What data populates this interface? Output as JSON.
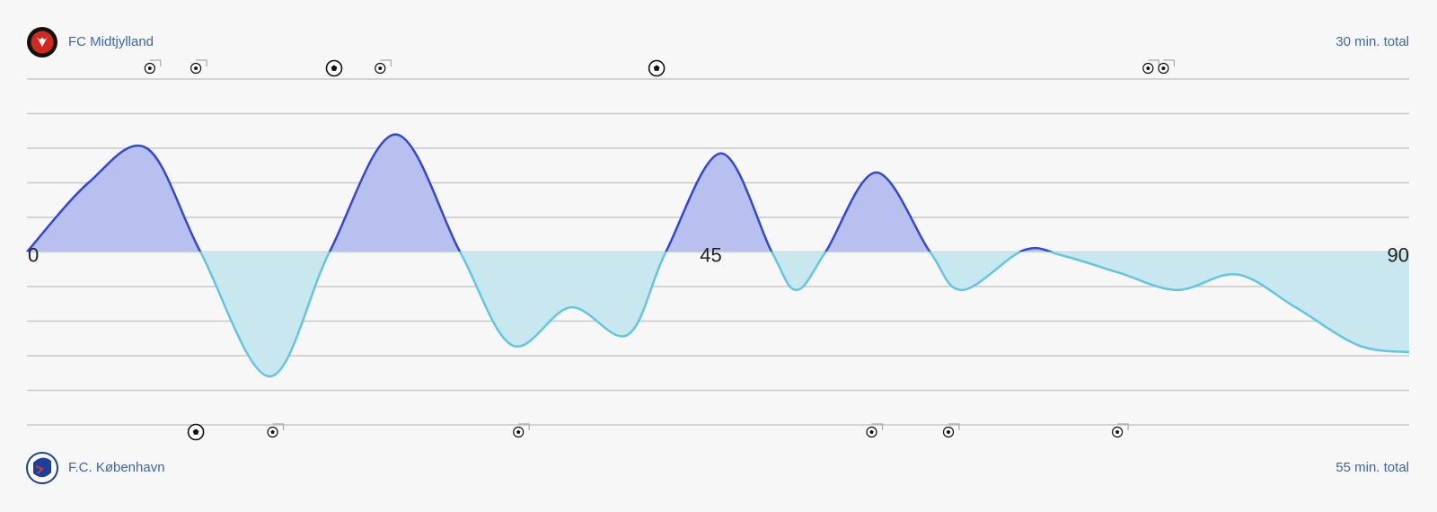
{
  "chart_data": {
    "type": "momentum",
    "x": [
      0,
      4,
      7.8,
      11.3,
      15.8,
      19.7,
      24,
      28.2,
      31.6,
      35.4,
      39.1,
      41.6,
      45.2,
      48.5,
      50.1,
      52,
      55.3,
      58.8,
      60.9,
      64.9,
      67.4,
      71.1,
      74.9,
      78.8,
      82.6,
      86.7,
      90
    ],
    "values": [
      0,
      2,
      3,
      0,
      -3.6,
      0,
      3.4,
      0,
      -2.7,
      -1.6,
      -2.4,
      0,
      2.85,
      0,
      -1.1,
      0,
      2.3,
      0,
      -1.1,
      0.05,
      -0.1,
      -0.6,
      -1.1,
      -0.65,
      -1.6,
      -2.7,
      -2.9
    ],
    "xlim": [
      0,
      90
    ],
    "xticks": [
      0,
      45,
      90
    ],
    "ylim": [
      -5,
      5
    ],
    "yticks": [
      -5,
      -4,
      -3,
      -2,
      -1,
      0,
      1,
      2,
      3,
      4,
      5
    ],
    "grid": true,
    "colors": {
      "up": "#3347d4",
      "up_fill": "#b7c0ef",
      "down": "#62c6e2",
      "down_fill": "#c9e7ef"
    },
    "teams": [
      {
        "name": "FC Midtjylland",
        "total": "30 min. total",
        "goals": [
          20,
          41
        ],
        "chances": [
          8,
          11,
          23,
          73,
          74
        ]
      },
      {
        "name": "F.C. København",
        "total": "55 min. total",
        "goals": [
          11
        ],
        "chances": [
          16,
          32,
          55,
          60,
          71
        ]
      }
    ]
  }
}
